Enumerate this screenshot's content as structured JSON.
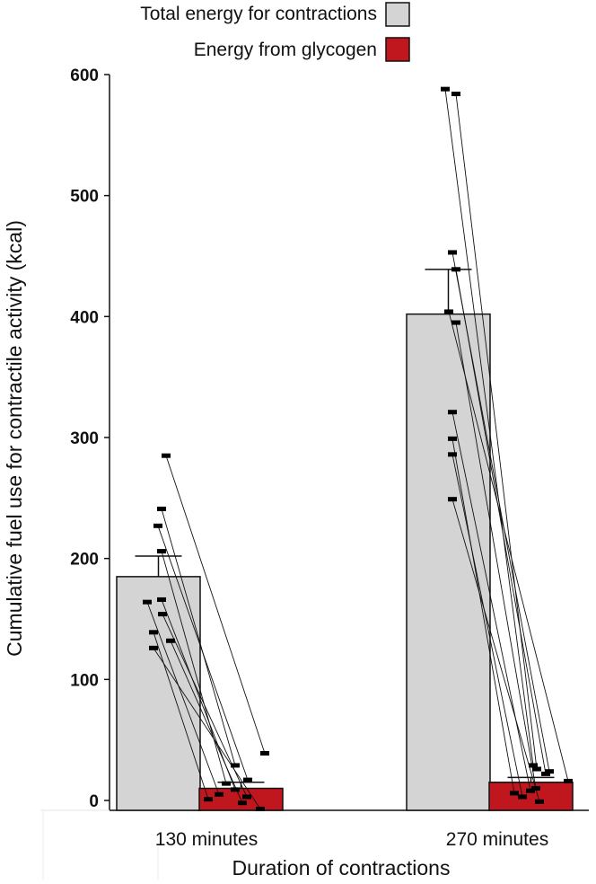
{
  "chart_data": {
    "type": "bar",
    "title": "",
    "xlabel": "Duration of contractions",
    "ylabel": "Cumulative fuel use for contractile activity (kcal)",
    "ylim": [
      0,
      600
    ],
    "yticks": [
      0,
      100,
      200,
      300,
      400,
      500,
      600
    ],
    "categories": [
      "130 minutes",
      "270 minutes"
    ],
    "legend_placement": "top-right",
    "grid": false,
    "series": [
      {
        "name": "Total energy for contractions",
        "color": "#d4d4d4",
        "values": [
          185,
          402
        ],
        "error_upper": [
          202,
          439
        ],
        "points": [
          [
            285,
            241,
            227,
            206,
            166,
            164,
            154,
            139,
            132,
            126
          ],
          [
            588,
            584,
            453,
            439,
            404,
            395,
            321,
            299,
            286,
            249
          ]
        ]
      },
      {
        "name": "Energy from glycogen",
        "color": "#c0161d",
        "values": [
          10,
          15
        ],
        "error_upper": [
          15,
          19
        ],
        "points": [
          [
            39,
            29,
            17,
            14,
            9,
            5,
            3,
            1,
            -2,
            -7
          ],
          [
            29,
            26,
            24,
            22,
            16,
            10,
            8,
            6,
            3,
            -1
          ]
        ]
      }
    ]
  }
}
